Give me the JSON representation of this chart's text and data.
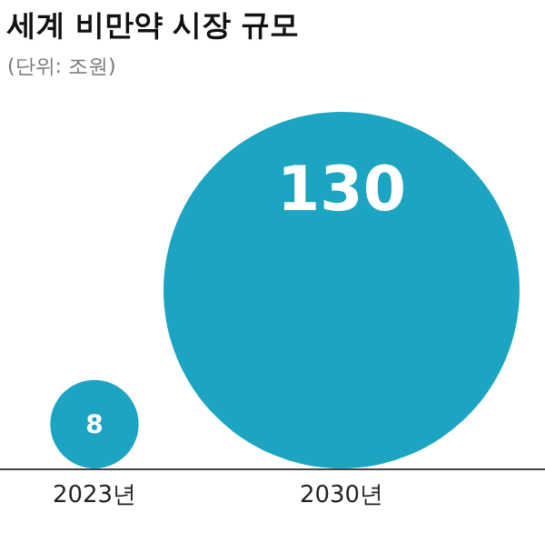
{
  "chart_data": {
    "type": "other",
    "title": "세계 비만약 시장 규모",
    "subtitle": "(단위: 조원)",
    "categories": [
      "2023년",
      "2030년"
    ],
    "values": [
      8,
      130
    ],
    "color": "#1ba5c2",
    "data_labels": true
  }
}
